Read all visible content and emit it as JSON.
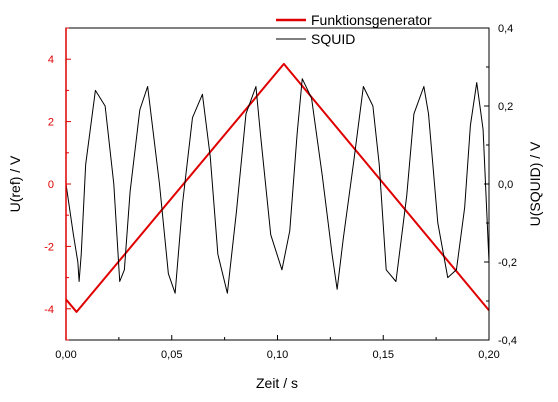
{
  "chart_data": {
    "type": "line",
    "xlabel": "Zeit / s",
    "ylabel_left": "U(ref) / V",
    "ylabel_right": "U(SQUID) / V",
    "xlim": [
      0,
      0.2
    ],
    "ylim_left": [
      -5,
      5
    ],
    "ylim_right": [
      -0.4,
      0.4
    ],
    "x_ticks": [
      "0,00",
      "0,05",
      "0,10",
      "0,15",
      "0,20"
    ],
    "y_left_ticks": [
      "-4",
      "-2",
      "0",
      "2",
      "4"
    ],
    "y_right_ticks": [
      "-0,4",
      "-0,2",
      "0,0",
      "0,2",
      "0,4"
    ],
    "grid": false,
    "legend_position": "top-right",
    "series": [
      {
        "name": "Funktionsgenerator",
        "axis": "left",
        "color": "#e00000",
        "x": [
          0,
          0.005,
          0.103,
          0.2
        ],
        "y": [
          -3.7,
          -4.1,
          3.85,
          -4.05
        ]
      },
      {
        "name": "SQUID",
        "axis": "right",
        "color": "#000000",
        "x": [
          0.0,
          0.0035,
          0.0056,
          0.0062,
          0.0072,
          0.0093,
          0.0139,
          0.0185,
          0.0226,
          0.0254,
          0.0276,
          0.0303,
          0.0349,
          0.0386,
          0.0442,
          0.0484,
          0.0516,
          0.0551,
          0.0598,
          0.0645,
          0.0682,
          0.0718,
          0.0763,
          0.0806,
          0.0851,
          0.0898,
          0.0919,
          0.0968,
          0.1021,
          0.1058,
          0.1093,
          0.1117,
          0.1161,
          0.1212,
          0.1258,
          0.1282,
          0.1311,
          0.1361,
          0.1406,
          0.1451,
          0.1481,
          0.1514,
          0.156,
          0.1611,
          0.1645,
          0.1692,
          0.1714,
          0.1758,
          0.1805,
          0.1846,
          0.1885,
          0.1912,
          0.1942,
          0.1972,
          0.2
        ],
        "y": [
          0.0,
          -0.13,
          -0.2,
          -0.25,
          -0.18,
          0.05,
          0.24,
          0.2,
          0.0,
          -0.25,
          -0.22,
          -0.02,
          0.19,
          0.25,
          0.0,
          -0.23,
          -0.28,
          -0.05,
          0.17,
          0.23,
          0.07,
          -0.18,
          -0.28,
          -0.07,
          0.18,
          0.25,
          0.13,
          -0.13,
          -0.22,
          -0.12,
          0.13,
          0.27,
          0.22,
          0.02,
          -0.18,
          -0.27,
          -0.14,
          0.06,
          0.25,
          0.2,
          0.05,
          -0.22,
          -0.25,
          -0.03,
          0.18,
          0.25,
          0.18,
          -0.1,
          -0.24,
          -0.22,
          -0.06,
          0.15,
          0.26,
          0.14,
          -0.2
        ]
      }
    ]
  }
}
